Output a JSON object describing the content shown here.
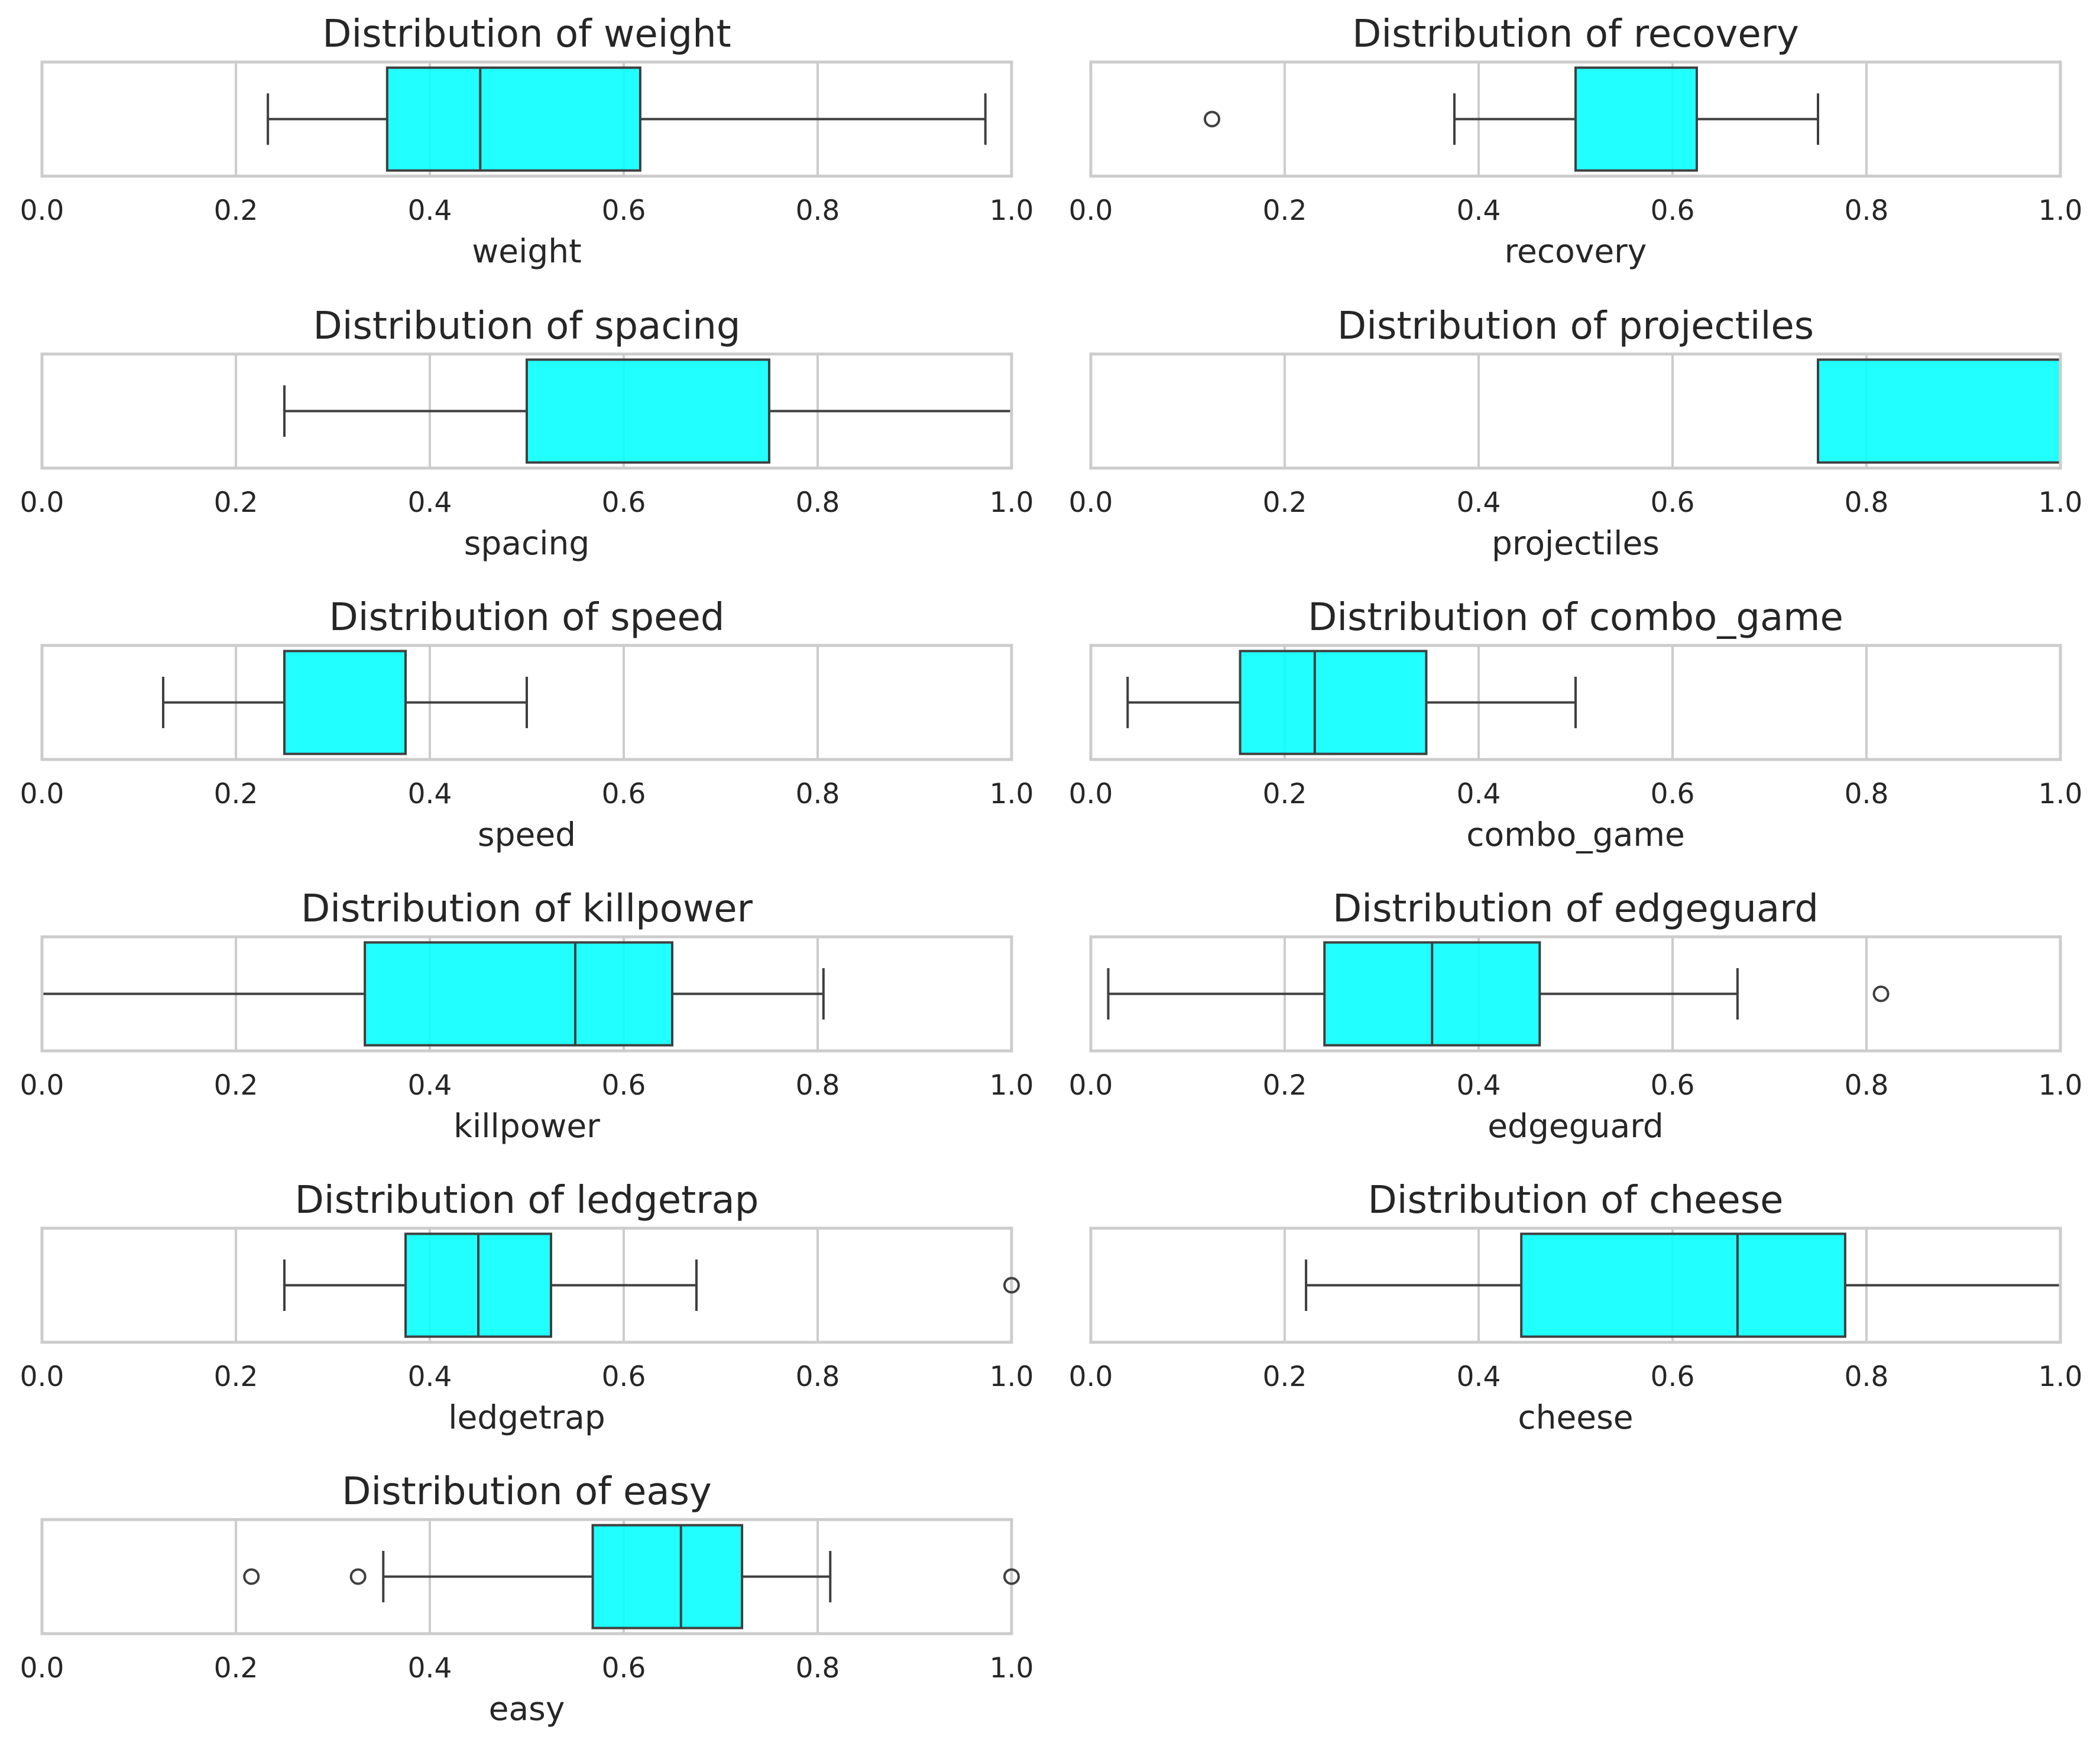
{
  "figure": {
    "background": "#ffffff",
    "box_fill": "#00FFFF",
    "box_fill_opacity": 0.87,
    "line_color": "#3f3f3f",
    "grid_color": "#cccccc",
    "text_color": "#262626"
  },
  "chart_data": [
    {
      "type": "boxplot",
      "orientation": "horizontal",
      "grid": true,
      "title": "Distribution of weight",
      "xlabel": "weight",
      "xlim": [
        0.0,
        1.0
      ],
      "xticks": [
        "0.0",
        "0.2",
        "0.4",
        "0.6",
        "0.8",
        "1.0"
      ],
      "box": {
        "whisker_low": 0.233,
        "q1": 0.356,
        "median": 0.452,
        "q3": 0.617,
        "whisker_high": 0.973
      },
      "outliers": []
    },
    {
      "type": "boxplot",
      "orientation": "horizontal",
      "grid": true,
      "title": "Distribution of recovery",
      "xlabel": "recovery",
      "xlim": [
        0.0,
        1.0
      ],
      "xticks": [
        "0.0",
        "0.2",
        "0.4",
        "0.6",
        "0.8",
        "1.0"
      ],
      "box": {
        "whisker_low": 0.375,
        "q1": 0.5,
        "median": 0.5,
        "q3": 0.625,
        "whisker_high": 0.75
      },
      "outliers": [
        0.125
      ]
    },
    {
      "type": "boxplot",
      "orientation": "horizontal",
      "grid": true,
      "title": "Distribution of spacing",
      "xlabel": "spacing",
      "xlim": [
        0.0,
        1.0
      ],
      "xticks": [
        "0.0",
        "0.2",
        "0.4",
        "0.6",
        "0.8",
        "1.0"
      ],
      "box": {
        "whisker_low": 0.25,
        "q1": 0.5,
        "median": 0.5,
        "q3": 0.75,
        "whisker_high": 1.0
      },
      "outliers": []
    },
    {
      "type": "boxplot",
      "orientation": "horizontal",
      "grid": true,
      "title": "Distribution of projectiles",
      "xlabel": "projectiles",
      "xlim": [
        0.0,
        1.0
      ],
      "xticks": [
        "0.0",
        "0.2",
        "0.4",
        "0.6",
        "0.8",
        "1.0"
      ],
      "box": {
        "whisker_low": 0.75,
        "q1": 0.75,
        "median": 0.75,
        "q3": 1.0,
        "whisker_high": 1.0
      },
      "outliers": []
    },
    {
      "type": "boxplot",
      "orientation": "horizontal",
      "grid": true,
      "title": "Distribution of speed",
      "xlabel": "speed",
      "xlim": [
        0.0,
        1.0
      ],
      "xticks": [
        "0.0",
        "0.2",
        "0.4",
        "0.6",
        "0.8",
        "1.0"
      ],
      "box": {
        "whisker_low": 0.125,
        "q1": 0.25,
        "median": 0.25,
        "q3": 0.375,
        "whisker_high": 0.5
      },
      "outliers": []
    },
    {
      "type": "boxplot",
      "orientation": "horizontal",
      "grid": true,
      "title": "Distribution of combo_game",
      "xlabel": "combo_game",
      "xlim": [
        0.0,
        1.0
      ],
      "xticks": [
        "0.0",
        "0.2",
        "0.4",
        "0.6",
        "0.8",
        "1.0"
      ],
      "box": {
        "whisker_low": 0.038,
        "q1": 0.154,
        "median": 0.231,
        "q3": 0.346,
        "whisker_high": 0.5
      },
      "outliers": []
    },
    {
      "type": "boxplot",
      "orientation": "horizontal",
      "grid": true,
      "title": "Distribution of killpower",
      "xlabel": "killpower",
      "xlim": [
        0.0,
        1.0
      ],
      "xticks": [
        "0.0",
        "0.2",
        "0.4",
        "0.6",
        "0.8",
        "1.0"
      ],
      "box": {
        "whisker_low": 0.0,
        "q1": 0.333,
        "median": 0.55,
        "q3": 0.65,
        "whisker_high": 0.806
      },
      "outliers": []
    },
    {
      "type": "boxplot",
      "orientation": "horizontal",
      "grid": true,
      "title": "Distribution of edgeguard",
      "xlabel": "edgeguard",
      "xlim": [
        0.0,
        1.0
      ],
      "xticks": [
        "0.0",
        "0.2",
        "0.4",
        "0.6",
        "0.8",
        "1.0"
      ],
      "box": {
        "whisker_low": 0.018,
        "q1": 0.241,
        "median": 0.352,
        "q3": 0.463,
        "whisker_high": 0.667
      },
      "outliers": [
        0.815
      ]
    },
    {
      "type": "boxplot",
      "orientation": "horizontal",
      "grid": true,
      "title": "Distribution of ledgetrap",
      "xlabel": "ledgetrap",
      "xlim": [
        0.0,
        1.0
      ],
      "xticks": [
        "0.0",
        "0.2",
        "0.4",
        "0.6",
        "0.8",
        "1.0"
      ],
      "box": {
        "whisker_low": 0.25,
        "q1": 0.375,
        "median": 0.45,
        "q3": 0.525,
        "whisker_high": 0.675
      },
      "outliers": [
        1.0
      ]
    },
    {
      "type": "boxplot",
      "orientation": "horizontal",
      "grid": true,
      "title": "Distribution of cheese",
      "xlabel": "cheese",
      "xlim": [
        0.0,
        1.0
      ],
      "xticks": [
        "0.0",
        "0.2",
        "0.4",
        "0.6",
        "0.8",
        "1.0"
      ],
      "box": {
        "whisker_low": 0.222,
        "q1": 0.444,
        "median": 0.667,
        "q3": 0.778,
        "whisker_high": 1.0
      },
      "outliers": []
    },
    {
      "type": "boxplot",
      "orientation": "horizontal",
      "grid": true,
      "title": "Distribution of easy",
      "xlabel": "easy",
      "xlim": [
        0.0,
        1.0
      ],
      "xticks": [
        "0.0",
        "0.2",
        "0.4",
        "0.6",
        "0.8",
        "1.0"
      ],
      "box": {
        "whisker_low": 0.352,
        "q1": 0.568,
        "median": 0.659,
        "q3": 0.722,
        "whisker_high": 0.813
      },
      "outliers": [
        0.216,
        0.326,
        1.0
      ]
    }
  ]
}
